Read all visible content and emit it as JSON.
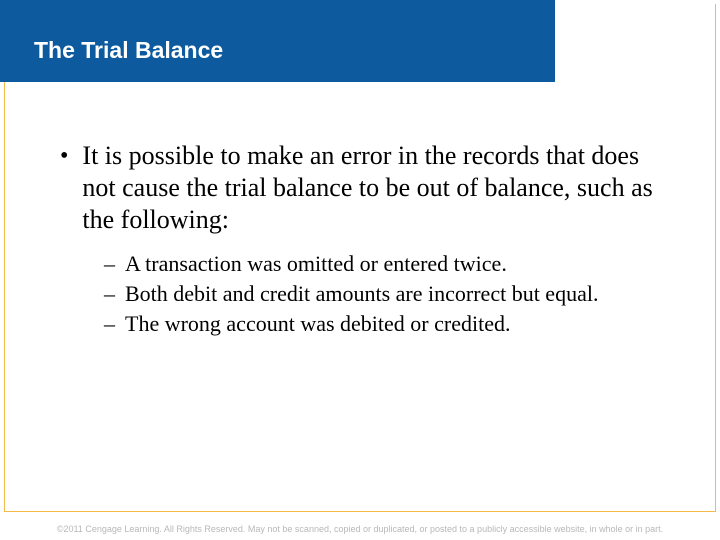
{
  "header": {
    "title": "The Trial Balance",
    "bar_color": "#0d5a9e",
    "title_color": "#ffffff",
    "title_fontsize": 23
  },
  "border_color": "#f5b94a",
  "content": {
    "main_bullet": "It is possible to make an error in the records that does not cause the trial balance to be out of balance, such as the following:",
    "sub_bullets": [
      "A transaction was omitted or entered twice.",
      "Both debit and credit amounts are incorrect but equal.",
      "The wrong account was debited or credited."
    ],
    "main_fontsize": 26,
    "sub_fontsize": 22,
    "text_color": "#000000"
  },
  "footer": {
    "text": "©2011 Cengage Learning. All Rights Reserved. May not be scanned, copied or duplicated, or posted to a publicly accessible website, in whole or in part.",
    "color": "#b8b8b8",
    "fontsize": 9
  }
}
